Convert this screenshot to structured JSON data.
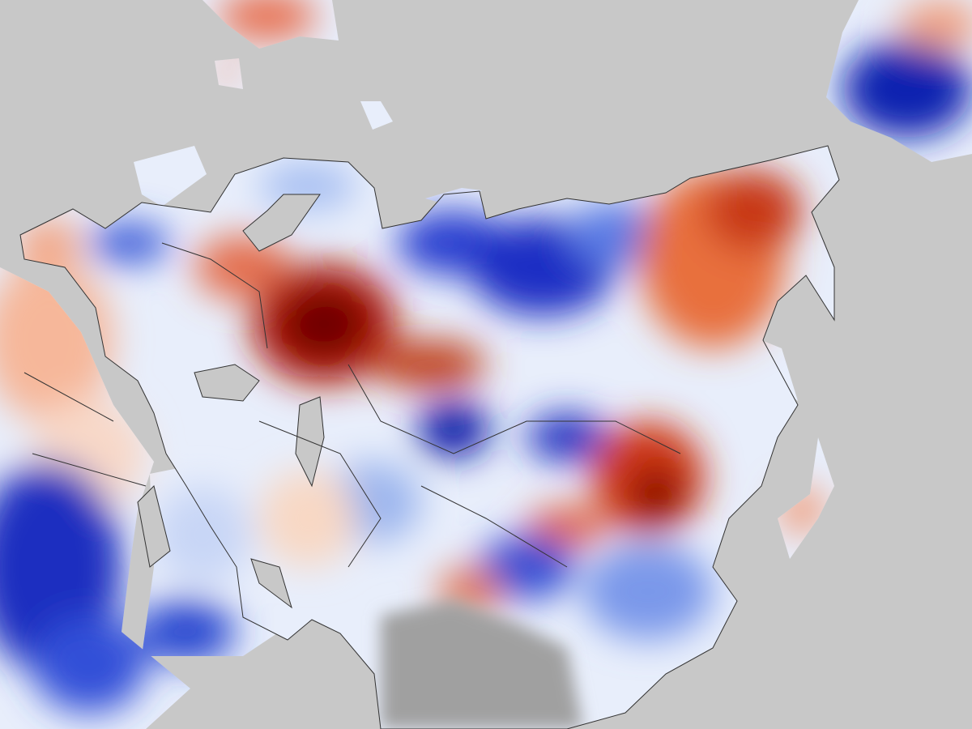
{
  "map": {
    "background_color": "#c8c8c8",
    "no_data_color": "#a0a0a0",
    "border_color": "#333333",
    "palette": {
      "strong_warm": "#7a0000",
      "warm": "#d9431e",
      "mild_warm": "#f4a582",
      "neutral": "#f5f5f5",
      "mild_cool": "#92b5f0",
      "cool": "#3456d8",
      "strong_cool": "#0a0a8c"
    }
  }
}
